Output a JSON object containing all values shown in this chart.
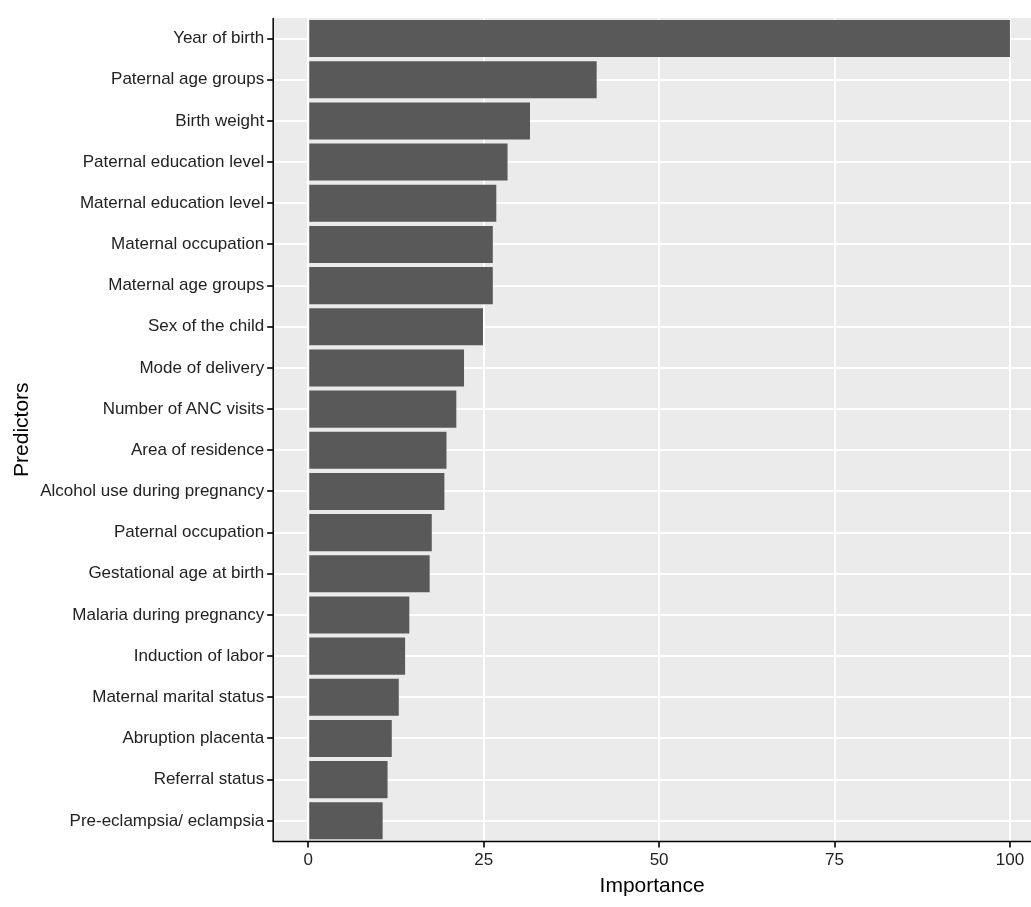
{
  "chart_data": {
    "type": "bar",
    "orientation": "horizontal",
    "xlabel": "Importance",
    "ylabel": "Predictors",
    "categories": [
      "Year of birth",
      "Paternal age groups",
      "Birth weight",
      "Paternal education level",
      "Maternal education level",
      "Maternal occupation",
      "Maternal age groups",
      "Sex of the child",
      "Mode of delivery",
      "Number of ANC visits",
      "Area of residence",
      "Alcohol use during pregnancy",
      "Paternal occupation",
      "Gestational age at birth",
      "Malaria during pregnancy",
      "Induction of labor",
      "Maternal marital status",
      "Abruption placenta",
      "Referral status",
      "Pre-eclampsia/ eclampsia"
    ],
    "values": [
      100,
      41.1,
      31.6,
      28.4,
      26.8,
      26.3,
      26.3,
      24.9,
      22.2,
      21.1,
      19.7,
      19.4,
      17.6,
      17.3,
      14.4,
      13.8,
      12.9,
      11.9,
      11.3,
      10.6
    ],
    "color": "#595959",
    "xlim": [
      -5,
      103
    ],
    "xticks": [
      0,
      25,
      50,
      75,
      100
    ],
    "grid": true,
    "legend": false
  }
}
